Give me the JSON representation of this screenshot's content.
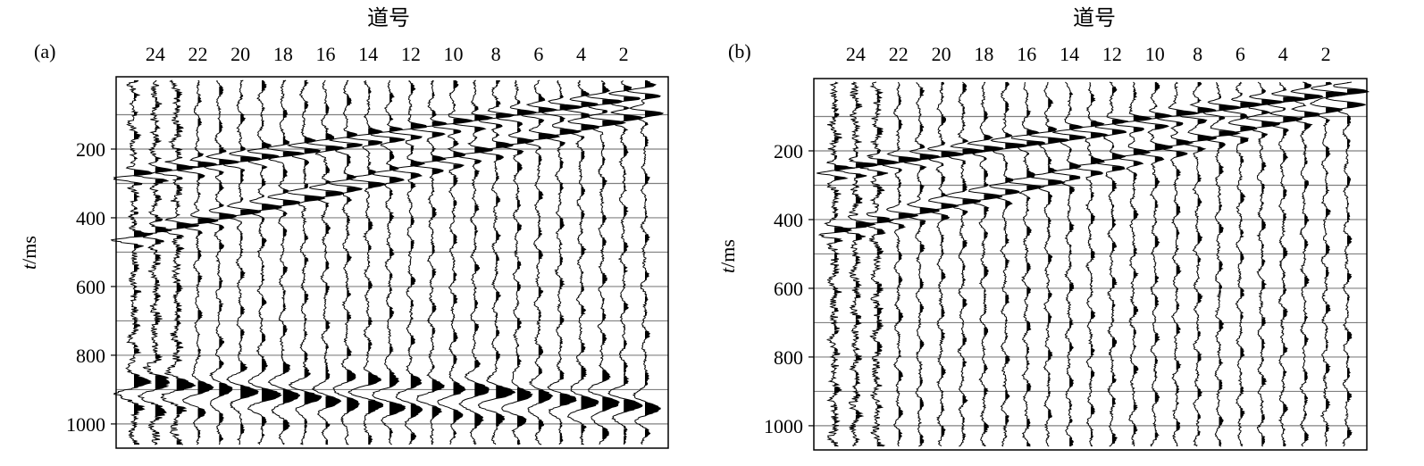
{
  "figure": {
    "background": "#ffffff",
    "trace_color": "#000000",
    "gridline_color": "#808080"
  },
  "chart_data": [
    {
      "type": "seismic-wiggle",
      "panel_label": "(a)",
      "xlabel": "道号",
      "ylabel_italic": "t",
      "ylabel_rest": "/ms",
      "xticks": [
        "24",
        "22",
        "20",
        "18",
        "16",
        "14",
        "12",
        "10",
        "8",
        "6",
        "4",
        "2"
      ],
      "yticks": [
        "200",
        "400",
        "600",
        "800",
        "1000"
      ],
      "ylim": [
        0,
        1060
      ],
      "gridlines_ms": [
        100,
        200,
        300,
        400,
        500,
        600,
        700,
        800,
        900,
        1000
      ],
      "x_reversed": true,
      "traces": [
        25,
        24,
        23,
        22,
        21,
        20,
        19,
        18,
        17,
        16,
        15,
        14,
        13,
        12,
        11,
        10,
        9,
        8,
        7,
        6,
        5,
        4,
        3,
        2,
        1
      ],
      "events": [
        {
          "kind": "direct",
          "t_far_ms": 280,
          "t_near_ms": 40,
          "amplitude": 1.0,
          "freq_hz": 30
        },
        {
          "kind": "refraction",
          "t_far_ms": 460,
          "t_near_ms": 90,
          "amplitude": 0.9,
          "freq_hz": 28
        },
        {
          "kind": "surface-wave",
          "t_ms": 940,
          "amplitude": 0.8,
          "freq_hz": 12
        }
      ]
    },
    {
      "type": "seismic-wiggle",
      "panel_label": "(b)",
      "xlabel": "道号",
      "ylabel_italic": "t",
      "ylabel_rest": "/ms",
      "xticks": [
        "24",
        "22",
        "20",
        "18",
        "16",
        "14",
        "12",
        "10",
        "8",
        "6",
        "4",
        "2"
      ],
      "yticks": [
        "200",
        "400",
        "600",
        "800",
        "1000"
      ],
      "ylim": [
        0,
        1060
      ],
      "gridlines_ms": [
        100,
        200,
        300,
        400,
        500,
        600,
        700,
        800,
        900,
        1000
      ],
      "x_reversed": true,
      "traces": [
        25,
        24,
        23,
        22,
        21,
        20,
        19,
        18,
        17,
        16,
        15,
        14,
        13,
        12,
        11,
        10,
        9,
        8,
        7,
        6,
        5,
        4,
        3,
        2,
        1
      ],
      "events": [
        {
          "kind": "direct",
          "t_far_ms": 260,
          "t_near_ms": 20,
          "amplitude": 1.0,
          "freq_hz": 30
        },
        {
          "kind": "refraction",
          "t_far_ms": 440,
          "t_near_ms": 60,
          "amplitude": 0.9,
          "freq_hz": 28
        }
      ]
    }
  ]
}
